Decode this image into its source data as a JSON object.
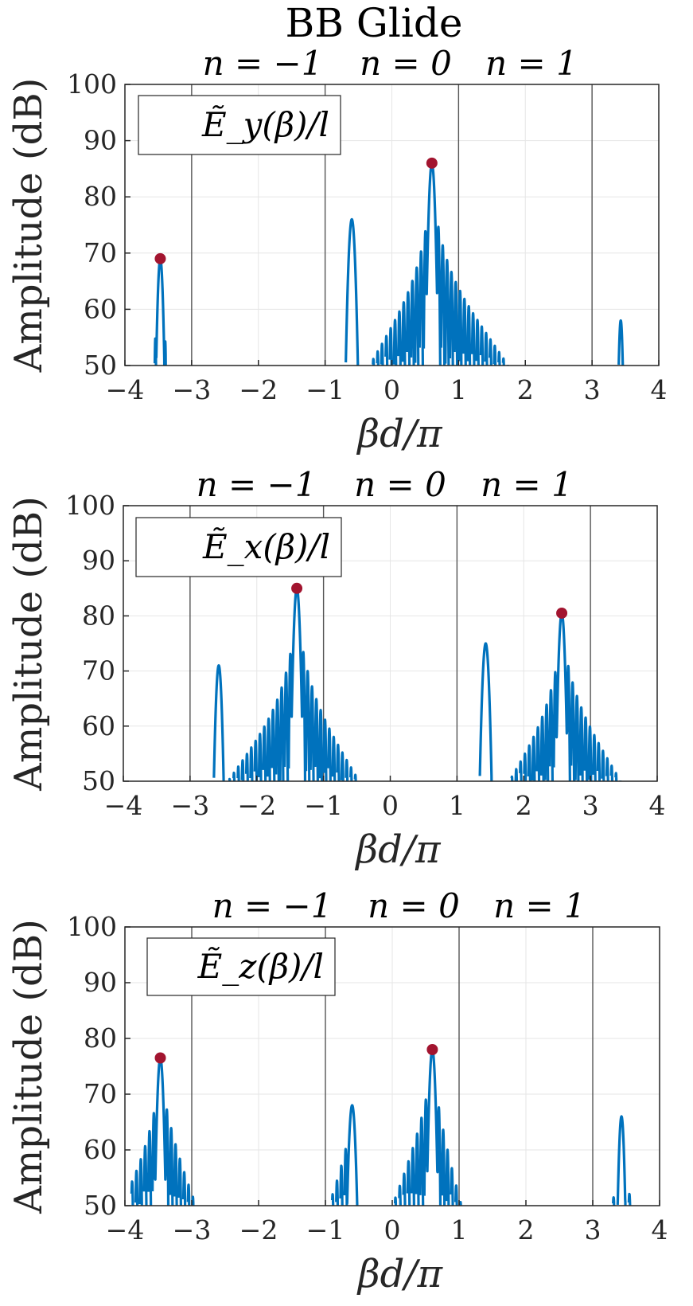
{
  "figure_title": "BB Glide",
  "chart_data": [
    {
      "type": "line",
      "legend": "Ẽ_y(β)/l",
      "legend_placement": "top-left",
      "top_labels": [
        "n = −1",
        "n = 0",
        "n = 1"
      ],
      "xlabel": "βd/π",
      "ylabel": "Amplitude (dB)",
      "xlim": [
        -4,
        4
      ],
      "ylim": [
        50,
        100
      ],
      "xticks": [
        "−4",
        "−3",
        "−2",
        "−1",
        "0",
        "1",
        "2",
        "3",
        "4"
      ],
      "yticks": [
        "50",
        "60",
        "70",
        "80",
        "90",
        "100"
      ],
      "grid": true,
      "region_lines": [
        -3,
        -1,
        1,
        3
      ],
      "line_color": "#0072BD",
      "marker_color": "#A2142F",
      "envelope": [
        {
          "x0": -3.8,
          "x1": -3.36,
          "peak": -3.47,
          "peak_y": 69,
          "w": 0.04,
          "base_l": 56,
          "decay_l": 0.1,
          "base_r": 55,
          "decay_r": 0.1,
          "side_spacing": 0.05
        },
        {
          "x0": -0.8,
          "x1": 2.2,
          "peak": 0.6,
          "peak_y": 86,
          "w": 0.045,
          "base_l": 67,
          "decay_l": 0.6,
          "base_r": 68,
          "decay_r": 0.7,
          "side_spacing": 0.065
        },
        {
          "x0": -0.75,
          "x1": -0.47,
          "peak": -0.6,
          "peak_y": 76,
          "w": 0.05,
          "base_l": 0,
          "decay_l": 1,
          "base_r": 0,
          "decay_r": 1,
          "side_spacing": 0.1
        },
        {
          "x0": 3.36,
          "x1": 3.5,
          "peak": 3.43,
          "peak_y": 58,
          "w": 0.03,
          "base_l": 0,
          "decay_l": 1,
          "base_r": 0,
          "decay_r": 1,
          "side_spacing": 0.1
        }
      ],
      "markers": [
        [
          -3.47,
          69
        ],
        [
          0.6,
          86
        ]
      ]
    },
    {
      "type": "line",
      "legend": "Ẽ_x(β)/l",
      "legend_placement": "top-left",
      "top_labels": [
        "n = −1",
        "n = 0",
        "n = 1"
      ],
      "xlabel": "βd/π",
      "ylabel": "Amplitude (dB)",
      "xlim": [
        -4,
        4
      ],
      "ylim": [
        50,
        100
      ],
      "xticks": [
        "−4",
        "−3",
        "−2",
        "−1",
        "0",
        "1",
        "2",
        "3",
        "4"
      ],
      "yticks": [
        "50",
        "60",
        "70",
        "80",
        "90",
        "100"
      ],
      "grid": true,
      "region_lines": [
        -3,
        -1,
        1,
        3
      ],
      "line_color": "#0072BD",
      "marker_color": "#A2142F",
      "envelope": [
        {
          "x0": -2.7,
          "x1": 0.1,
          "peak": -1.4,
          "peak_y": 85,
          "w": 0.045,
          "base_l": 66,
          "decay_l": 0.7,
          "base_r": 67,
          "decay_r": 0.6,
          "side_spacing": 0.065
        },
        {
          "x0": -2.68,
          "x1": -2.46,
          "peak": -2.57,
          "peak_y": 71,
          "w": 0.045,
          "base_l": 0,
          "decay_l": 1,
          "base_r": 0,
          "decay_r": 1,
          "side_spacing": 0.1
        },
        {
          "x0": 0.9,
          "x1": 3.5,
          "peak": 2.57,
          "peak_y": 80.5,
          "w": 0.045,
          "base_l": 64,
          "decay_l": 0.6,
          "base_r": 66,
          "decay_r": 0.6,
          "side_spacing": 0.065
        },
        {
          "x0": 1.3,
          "x1": 1.55,
          "peak": 1.43,
          "peak_y": 75,
          "w": 0.05,
          "base_l": 0,
          "decay_l": 1,
          "base_r": 0,
          "decay_r": 1,
          "side_spacing": 0.1
        }
      ],
      "markers": [
        [
          -1.4,
          85
        ],
        [
          2.57,
          80.5
        ]
      ]
    },
    {
      "type": "line",
      "legend": "Ẽ_z(β)/l",
      "legend_placement": "top-left",
      "top_labels": [
        "n = −1",
        "n = 0",
        "n = 1"
      ],
      "xlabel": "βd/π",
      "ylabel": "Amplitude (dB)",
      "xlim": [
        -4,
        4
      ],
      "ylim": [
        50,
        100
      ],
      "xticks": [
        "−4",
        "−3",
        "−2",
        "−1",
        "0",
        "1",
        "2",
        "3",
        "4"
      ],
      "yticks": [
        "50",
        "60",
        "70",
        "80",
        "90",
        "100"
      ],
      "grid": true,
      "region_lines": [
        -3,
        -1,
        1,
        3
      ],
      "line_color": "#0072BD",
      "marker_color": "#A2142F",
      "envelope": [
        {
          "x0": -3.9,
          "x1": -2.8,
          "peak": -3.47,
          "peak_y": 76.5,
          "w": 0.045,
          "base_l": 62,
          "decay_l": 0.5,
          "base_r": 64,
          "decay_r": 0.4,
          "side_spacing": 0.065
        },
        {
          "x0": -1.4,
          "x1": -0.47,
          "peak": -0.6,
          "peak_y": 68,
          "w": 0.05,
          "base_l": 58,
          "decay_l": 0.4,
          "base_r": 0,
          "decay_r": 1,
          "side_spacing": 0.065
        },
        {
          "x0": 0.0,
          "x1": 1.22,
          "peak": 0.6,
          "peak_y": 78,
          "w": 0.045,
          "base_l": 66,
          "decay_l": 0.4,
          "base_r": 65,
          "decay_r": 0.3,
          "side_spacing": 0.065
        },
        {
          "x0": 3.3,
          "x1": 3.6,
          "peak": 3.43,
          "peak_y": 66,
          "w": 0.04,
          "base_l": 52,
          "decay_l": 0.2,
          "base_r": 53,
          "decay_r": 0.2,
          "side_spacing": 0.08
        }
      ],
      "markers": [
        [
          -3.47,
          76.5
        ],
        [
          0.6,
          78
        ]
      ]
    }
  ]
}
